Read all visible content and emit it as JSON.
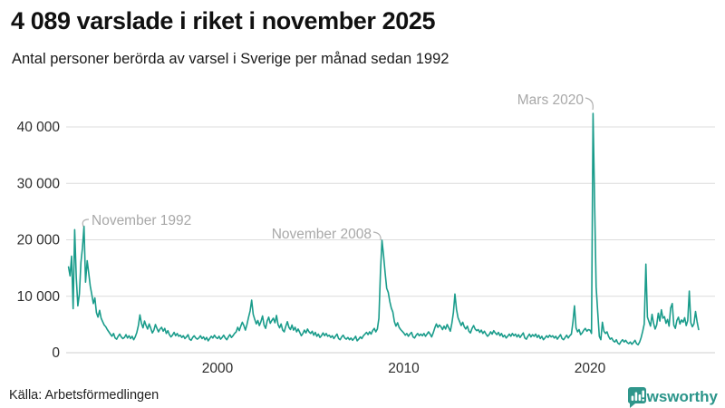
{
  "header": {
    "title": "4 089 varslade i riket i november 2025",
    "subtitle": "Antal personer berörda av varsel i Sverige per månad sedan 1992"
  },
  "footer": {
    "source": "Källa: Arbetsförmedlingen",
    "brand": "Newsworthy"
  },
  "colors": {
    "line": "#1a9c8b",
    "annotation": "#a8a8a8",
    "brand_teal": "#2f968b",
    "gridline": "#dcdcdc"
  },
  "chart_data": {
    "type": "line",
    "title": "4 089 varslade i riket i november 2025",
    "subtitle": "Antal personer berörda av varsel i Sverige per månad sedan 1992",
    "xlabel": "",
    "ylabel": "",
    "unit": "personer",
    "grid": "horizontal gridlines only",
    "legend": "none",
    "ylim": [
      0,
      44000
    ],
    "x_ticks": [
      "2000",
      "2010",
      "2020"
    ],
    "y_ticks": [
      "0",
      "10 000",
      "20 000",
      "30 000",
      "40 000"
    ],
    "y_tick_values": [
      0,
      10000,
      20000,
      30000,
      40000
    ],
    "annotations": [
      {
        "label": "November 1992",
        "x": "1992-11",
        "value": 22400
      },
      {
        "label": "November 2008",
        "x": "2008-11",
        "value": 19900
      },
      {
        "label": "Mars 2020",
        "x": "2020-03",
        "value": 42400
      }
    ],
    "series": [
      {
        "name": "Antal personer berörda av varsel per månad",
        "color": "#1a9c8b",
        "frequency": "monthly",
        "start_year": 1992,
        "start_month": 1,
        "end_year": 2025,
        "end_month": 11,
        "last_value": 4089,
        "values": [
          15200,
          13600,
          17100,
          7800,
          21800,
          13200,
          8300,
          10400,
          16000,
          18600,
          22400,
          12500,
          16300,
          14100,
          11800,
          10300,
          8700,
          9700,
          7100,
          6300,
          7500,
          6100,
          5500,
          4900,
          4600,
          4100,
          3700,
          3300,
          2900,
          3400,
          2600,
          2400,
          2900,
          3300,
          2800,
          2500,
          2700,
          3200,
          2600,
          3000,
          2500,
          2900,
          2300,
          2800,
          3600,
          4800,
          6700,
          5200,
          4400,
          5600,
          4800,
          4200,
          5100,
          4300,
          3500,
          4000,
          5000,
          4300,
          3700,
          4200,
          4500,
          3800,
          4300,
          3400,
          3900,
          3200,
          2800,
          3100,
          3600,
          3000,
          3400,
          2900,
          3100,
          2700,
          3000,
          2500,
          2800,
          3200,
          2400,
          2200,
          2700,
          3000,
          2600,
          2400,
          2600,
          3000,
          2500,
          2800,
          2300,
          2700,
          2100,
          2500,
          2900,
          2600,
          3100,
          2700,
          2500,
          2900,
          2400,
          2700,
          3100,
          2600,
          2300,
          2800,
          3200,
          2700,
          3000,
          3400,
          3700,
          4500,
          3900,
          4700,
          5400,
          4800,
          4000,
          5000,
          6300,
          7400,
          9300,
          6800,
          5900,
          5100,
          5700,
          4800,
          5500,
          6500,
          4900,
          4300,
          5600,
          6300,
          5200,
          5700,
          6100,
          5300,
          6600,
          5000,
          4400,
          5100,
          4000,
          3700,
          4700,
          5500,
          4500,
          4100,
          4900,
          4000,
          4500,
          3700,
          4200,
          3600,
          3000,
          3400,
          4000,
          3500,
          4200,
          3700,
          3400,
          3800,
          3100,
          3600,
          2900,
          3300,
          2700,
          3000,
          3500,
          3000,
          3400,
          2900,
          3100,
          2700,
          3000,
          2500,
          2900,
          3300,
          2500,
          2300,
          2800,
          3100,
          2600,
          2400,
          2700,
          2300,
          2600,
          2200,
          2500,
          2900,
          2100,
          2400,
          2800,
          2500,
          3000,
          3300,
          3600,
          3200,
          3700,
          3300,
          3900,
          4300,
          3700,
          4200,
          6100,
          14200,
          19900,
          17300,
          14100,
          11400,
          10700,
          9100,
          7900,
          7200,
          5500,
          4700,
          5300,
          4500,
          4100,
          3800,
          3500,
          3100,
          3400,
          2900,
          3300,
          3600,
          2800,
          2600,
          3100,
          3400,
          3000,
          3300,
          3000,
          3400,
          2900,
          3300,
          3700,
          3300,
          2800,
          3500,
          4400,
          5100,
          4500,
          4900,
          4600,
          4100,
          4700,
          4200,
          5000,
          4400,
          3800,
          5200,
          7100,
          10400,
          7700,
          6200,
          5500,
          4800,
          5400,
          4600,
          4200,
          4700,
          3800,
          3500,
          4300,
          4800,
          4200,
          3900,
          4100,
          3600,
          4000,
          3400,
          3800,
          3300,
          2900,
          3200,
          3700,
          3300,
          3900,
          3500,
          3200,
          3600,
          3000,
          3400,
          2800,
          3100,
          2600,
          2900,
          3300,
          2900,
          3400,
          3000,
          3300,
          2800,
          3200,
          2700,
          3100,
          3500,
          2600,
          2400,
          2900,
          3300,
          2800,
          3200,
          2900,
          3300,
          2700,
          3100,
          2500,
          2900,
          2300,
          2600,
          3000,
          2700,
          3100,
          2800,
          3000,
          2600,
          2900,
          2400,
          2800,
          3200,
          2500,
          2300,
          2700,
          3100,
          2600,
          3000,
          3300,
          5400,
          8300,
          4400,
          3700,
          4100,
          3200,
          3500,
          4000,
          4300,
          3800,
          4100,
          4000,
          3400,
          42400,
          26800,
          11700,
          7100,
          2900,
          2300,
          5400,
          3800,
          3400,
          3700,
          2900,
          2400,
          2600,
          2100,
          1900,
          2300,
          1700,
          1500,
          2000,
          2300,
          1900,
          2200,
          1800,
          1600,
          1900,
          1500,
          1800,
          2200,
          1600,
          1400,
          1900,
          2700,
          3800,
          5100,
          15700,
          6300,
          5500,
          4700,
          6800,
          5200,
          4200,
          4900,
          7000,
          5600,
          7600,
          6100,
          6400,
          5200,
          5900,
          4700,
          7900,
          8700,
          4900,
          4300,
          5700,
          6300,
          5100,
          5800,
          5400,
          6200,
          4800,
          5700,
          10900,
          5300,
          4600,
          5100,
          7300,
          5500,
          4089
        ]
      }
    ]
  }
}
